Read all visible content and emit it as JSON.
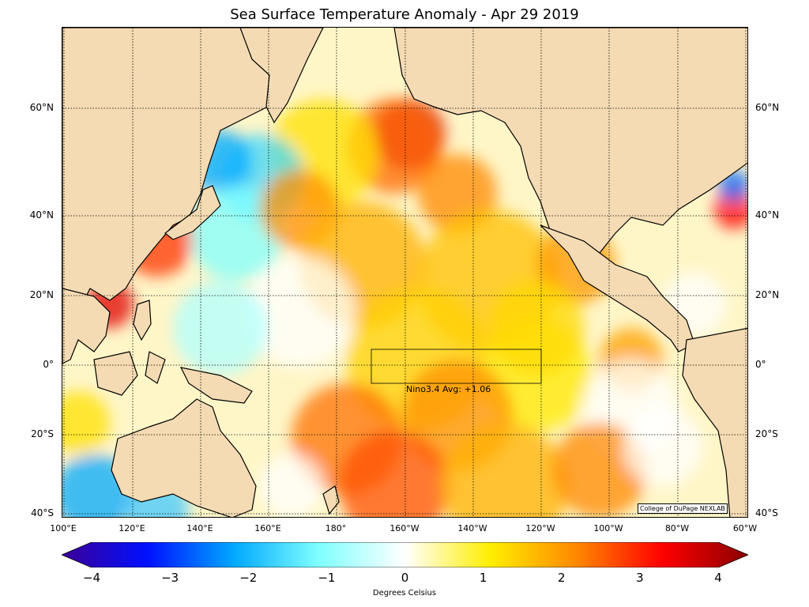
{
  "title": "Sea Surface Temperature Anomaly - Apr 29 2019",
  "map": {
    "lat_labels": [
      "60°N",
      "40°N",
      "20°N",
      "0°",
      "20°S",
      "40°S"
    ],
    "lon_labels": [
      "100°E",
      "120°E",
      "140°E",
      "160°E",
      "180°",
      "160°W",
      "140°W",
      "120°W",
      "100°W",
      "80°W",
      "60°W"
    ],
    "nino_label": "Nino3.4 Avg: +1.06",
    "credit": "College of DuPage NEXLAB",
    "land_color": "#f4dbb3"
  },
  "colorbar": {
    "ticks": [
      "−4",
      "−3",
      "−2",
      "−1",
      "0",
      "1",
      "2",
      "3",
      "4"
    ],
    "label": "Degrees Celsius",
    "colors": [
      "#3c0096",
      "#0010ff",
      "#00a8ff",
      "#80ffff",
      "#ffffff",
      "#ffee00",
      "#ff8800",
      "#ff0000",
      "#8a0000"
    ]
  }
}
